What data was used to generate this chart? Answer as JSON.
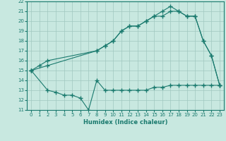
{
  "line1_x": [
    0,
    1,
    2,
    8,
    9,
    10,
    11,
    12,
    13,
    14,
    15,
    16,
    17,
    18,
    19,
    20,
    21,
    22,
    23
  ],
  "line1_y": [
    15.0,
    15.5,
    16.0,
    17.0,
    17.5,
    18.0,
    19.0,
    19.5,
    19.5,
    20.0,
    20.5,
    21.0,
    21.5,
    21.0,
    20.5,
    20.5,
    18.0,
    16.5,
    13.5
  ],
  "line2_x": [
    0,
    2,
    8,
    9,
    10,
    11,
    12,
    13,
    14,
    15,
    16,
    17,
    18,
    19,
    20,
    21,
    22,
    23
  ],
  "line2_y": [
    15.0,
    15.5,
    17.0,
    17.5,
    18.0,
    19.0,
    19.5,
    19.5,
    20.0,
    20.5,
    20.5,
    21.0,
    21.0,
    20.5,
    20.5,
    18.0,
    16.5,
    13.5
  ],
  "line3_x": [
    0,
    2,
    3,
    4,
    5,
    6,
    7,
    8,
    9,
    10,
    11,
    12,
    13,
    14,
    15,
    16,
    17,
    18,
    19,
    20,
    21,
    22,
    23
  ],
  "line3_y": [
    15.0,
    13.0,
    12.8,
    12.5,
    12.5,
    12.2,
    11.0,
    14.0,
    13.0,
    13.0,
    13.0,
    13.0,
    13.0,
    13.0,
    13.3,
    13.3,
    13.5,
    13.5,
    13.5,
    13.5,
    13.5,
    13.5,
    13.5
  ],
  "line_color": "#1a7a6e",
  "bg_color": "#c8e8e0",
  "grid_color": "#a0c8c0",
  "xlabel": "Humidex (Indice chaleur)",
  "xlim_min": -0.5,
  "xlim_max": 23.5,
  "ylim_min": 11,
  "ylim_max": 22,
  "xticks": [
    0,
    1,
    2,
    3,
    4,
    5,
    6,
    7,
    8,
    9,
    10,
    11,
    12,
    13,
    14,
    15,
    16,
    17,
    18,
    19,
    20,
    21,
    22,
    23
  ],
  "yticks": [
    11,
    12,
    13,
    14,
    15,
    16,
    17,
    18,
    19,
    20,
    21,
    22
  ]
}
